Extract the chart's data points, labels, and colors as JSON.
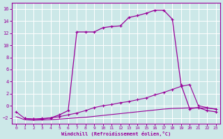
{
  "xlabel": "Windchill (Refroidissement éolien,°C)",
  "bg_color": "#cce8e8",
  "line_color": "#990099",
  "grid_color": "#ffffff",
  "xlim": [
    -0.5,
    23.5
  ],
  "ylim": [
    -3.0,
    17.0
  ],
  "yticks": [
    -2,
    0,
    2,
    4,
    6,
    8,
    10,
    12,
    14,
    16
  ],
  "xticks": [
    0,
    1,
    2,
    3,
    4,
    5,
    6,
    7,
    8,
    9,
    10,
    11,
    12,
    13,
    14,
    15,
    16,
    17,
    18,
    19,
    20,
    21,
    22,
    23
  ],
  "curve_upper_x": [
    1,
    2,
    3,
    4,
    5,
    6,
    7,
    8,
    9,
    10,
    11,
    12,
    13,
    14,
    15,
    16,
    17,
    18,
    19,
    20,
    21,
    22,
    23
  ],
  "curve_upper_y": [
    -2.1,
    -2.2,
    -2.2,
    -2.0,
    -1.5,
    -0.8,
    12.2,
    12.2,
    12.2,
    12.9,
    13.1,
    13.2,
    14.6,
    14.9,
    15.3,
    15.8,
    15.8,
    14.3,
    3.5,
    -0.5,
    -0.3,
    -0.8,
    -1.0
  ],
  "curve_mid_x": [
    0,
    1,
    2,
    3,
    4,
    5,
    6,
    7,
    8,
    9,
    10,
    11,
    12,
    13,
    14,
    15,
    16,
    17,
    18,
    19,
    20,
    21,
    22,
    23
  ],
  "curve_mid_y": [
    -1.0,
    -2.1,
    -2.2,
    -2.1,
    -2.0,
    -1.8,
    -1.5,
    -1.2,
    -0.8,
    -0.3,
    0.0,
    0.2,
    0.5,
    0.7,
    1.0,
    1.3,
    1.8,
    2.2,
    2.7,
    3.2,
    3.5,
    0.0,
    -0.3,
    -0.6
  ],
  "curve_low_x": [
    0,
    1,
    2,
    3,
    4,
    5,
    6,
    7,
    8,
    9,
    10,
    11,
    12,
    13,
    14,
    15,
    16,
    17,
    18,
    19,
    20,
    21,
    22,
    23
  ],
  "curve_low_y": [
    -1.8,
    -2.3,
    -2.4,
    -2.35,
    -2.3,
    -2.2,
    -2.1,
    -2.0,
    -1.9,
    -1.75,
    -1.6,
    -1.45,
    -1.3,
    -1.15,
    -1.0,
    -0.85,
    -0.7,
    -0.55,
    -0.45,
    -0.4,
    -0.35,
    -0.35,
    -0.4,
    -0.5
  ]
}
